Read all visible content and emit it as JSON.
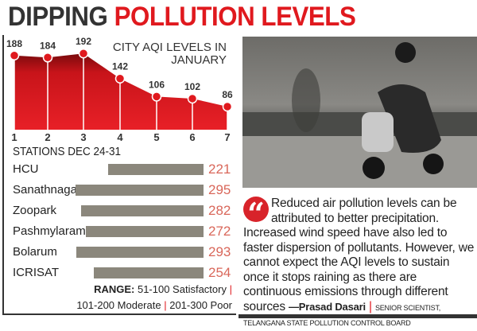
{
  "title": {
    "part1": "DIPPING ",
    "part2": "POLLUTION LEVELS"
  },
  "chart_data": [
    {
      "type": "area",
      "title": "CITY AQI LEVELS IN JANUARY",
      "title_line1": "CITY AQI LEVELS IN",
      "title_line2": "JANUARY",
      "categories": [
        "1",
        "2",
        "3",
        "4",
        "5",
        "6",
        "7"
      ],
      "values": [
        188,
        184,
        192,
        142,
        106,
        102,
        86
      ],
      "xlabel": "",
      "ylabel": "",
      "color": "#e0191e"
    },
    {
      "type": "bar",
      "orientation": "horizontal",
      "title": "STATIONS DEC 24-31",
      "categories": [
        "HCU",
        "Sanathnagar",
        "Zoopark",
        "Pashmylaram",
        "Bolarum",
        "ICRISAT"
      ],
      "values": [
        221,
        295,
        282,
        272,
        293,
        254
      ],
      "color": "#8b877c"
    }
  ],
  "range": {
    "label": "RANGE:",
    "r1": "51-100 Satisfactory",
    "r2": "101-200 Moderate",
    "r3": "201-300 Poor"
  },
  "quote": {
    "text": "Reduced air pollution levels can be attributed to better precipitation. Increased wind speed have also led to faster dispersion of pollutants. However, we cannot expect the AQI levels to sustain once it stops raining as there are continuous emissions through different sources ",
    "author": "—Prasad Dasari",
    "role": "Senior Scientist, Telangana State Pollution Control Board"
  }
}
